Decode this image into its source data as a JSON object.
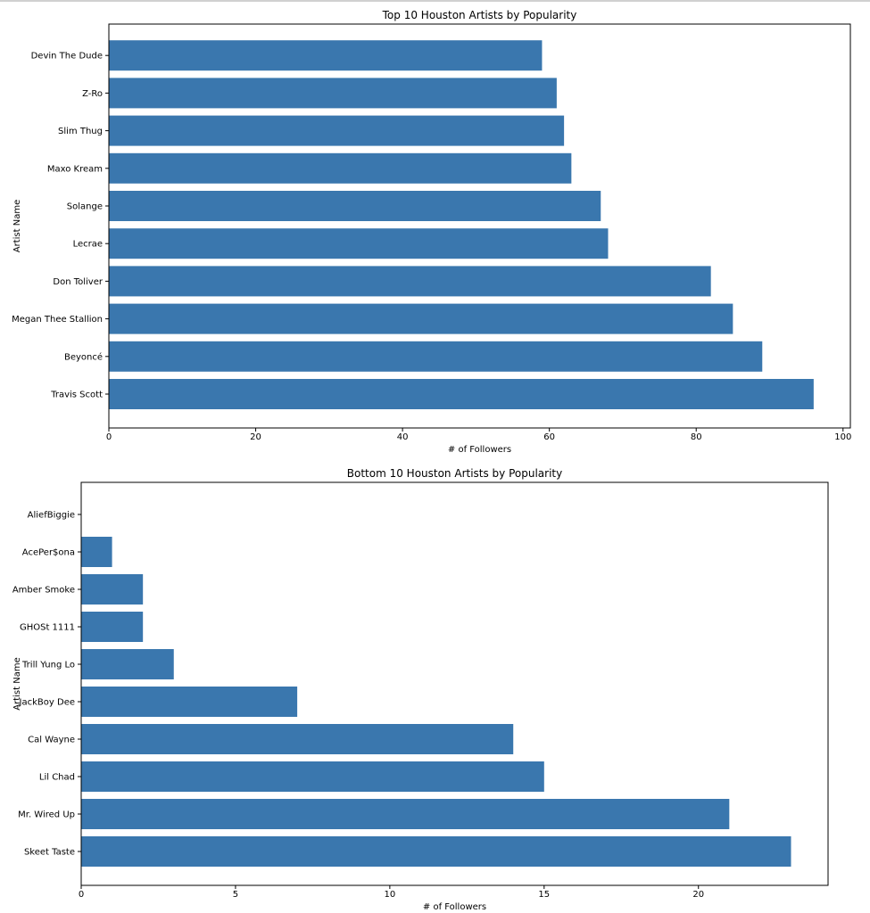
{
  "chart_data": [
    {
      "type": "bar",
      "orientation": "horizontal",
      "title": "Top 10 Houston Artists by Popularity",
      "xlabel": "# of Followers",
      "ylabel": "Artist Name",
      "xlim": [
        0,
        101
      ],
      "xticks": [
        0,
        20,
        40,
        60,
        80,
        100
      ],
      "categories": [
        "Travis Scott",
        "Beyoncé",
        "Megan Thee Stallion",
        "Don Toliver",
        "Lecrae",
        "Solange",
        "Maxo Kream",
        "Slim Thug",
        "Z-Ro",
        "Devin The Dude"
      ],
      "values": [
        96,
        89,
        85,
        82,
        68,
        67,
        63,
        62,
        61,
        59
      ],
      "color": "#3a77ae",
      "grid": false
    },
    {
      "type": "bar",
      "orientation": "horizontal",
      "title": "Bottom 10 Houston Artists by Popularity",
      "xlabel": "# of Followers",
      "ylabel": "Artist Name",
      "xlim": [
        0,
        24.2
      ],
      "xticks": [
        0,
        5,
        10,
        15,
        20
      ],
      "categories": [
        "Skeet Taste",
        "Mr. Wired Up",
        "Lil Chad",
        "Cal Wayne",
        "JackBoy Dee",
        "Trill Yung Lo",
        "GHOSt 1111",
        "Amber Smoke",
        "AcePer$ona",
        "AliefBiggie"
      ],
      "values": [
        23,
        21,
        15,
        14,
        7,
        3,
        2,
        2,
        1,
        0
      ],
      "color": "#3a77ae",
      "grid": false
    }
  ]
}
